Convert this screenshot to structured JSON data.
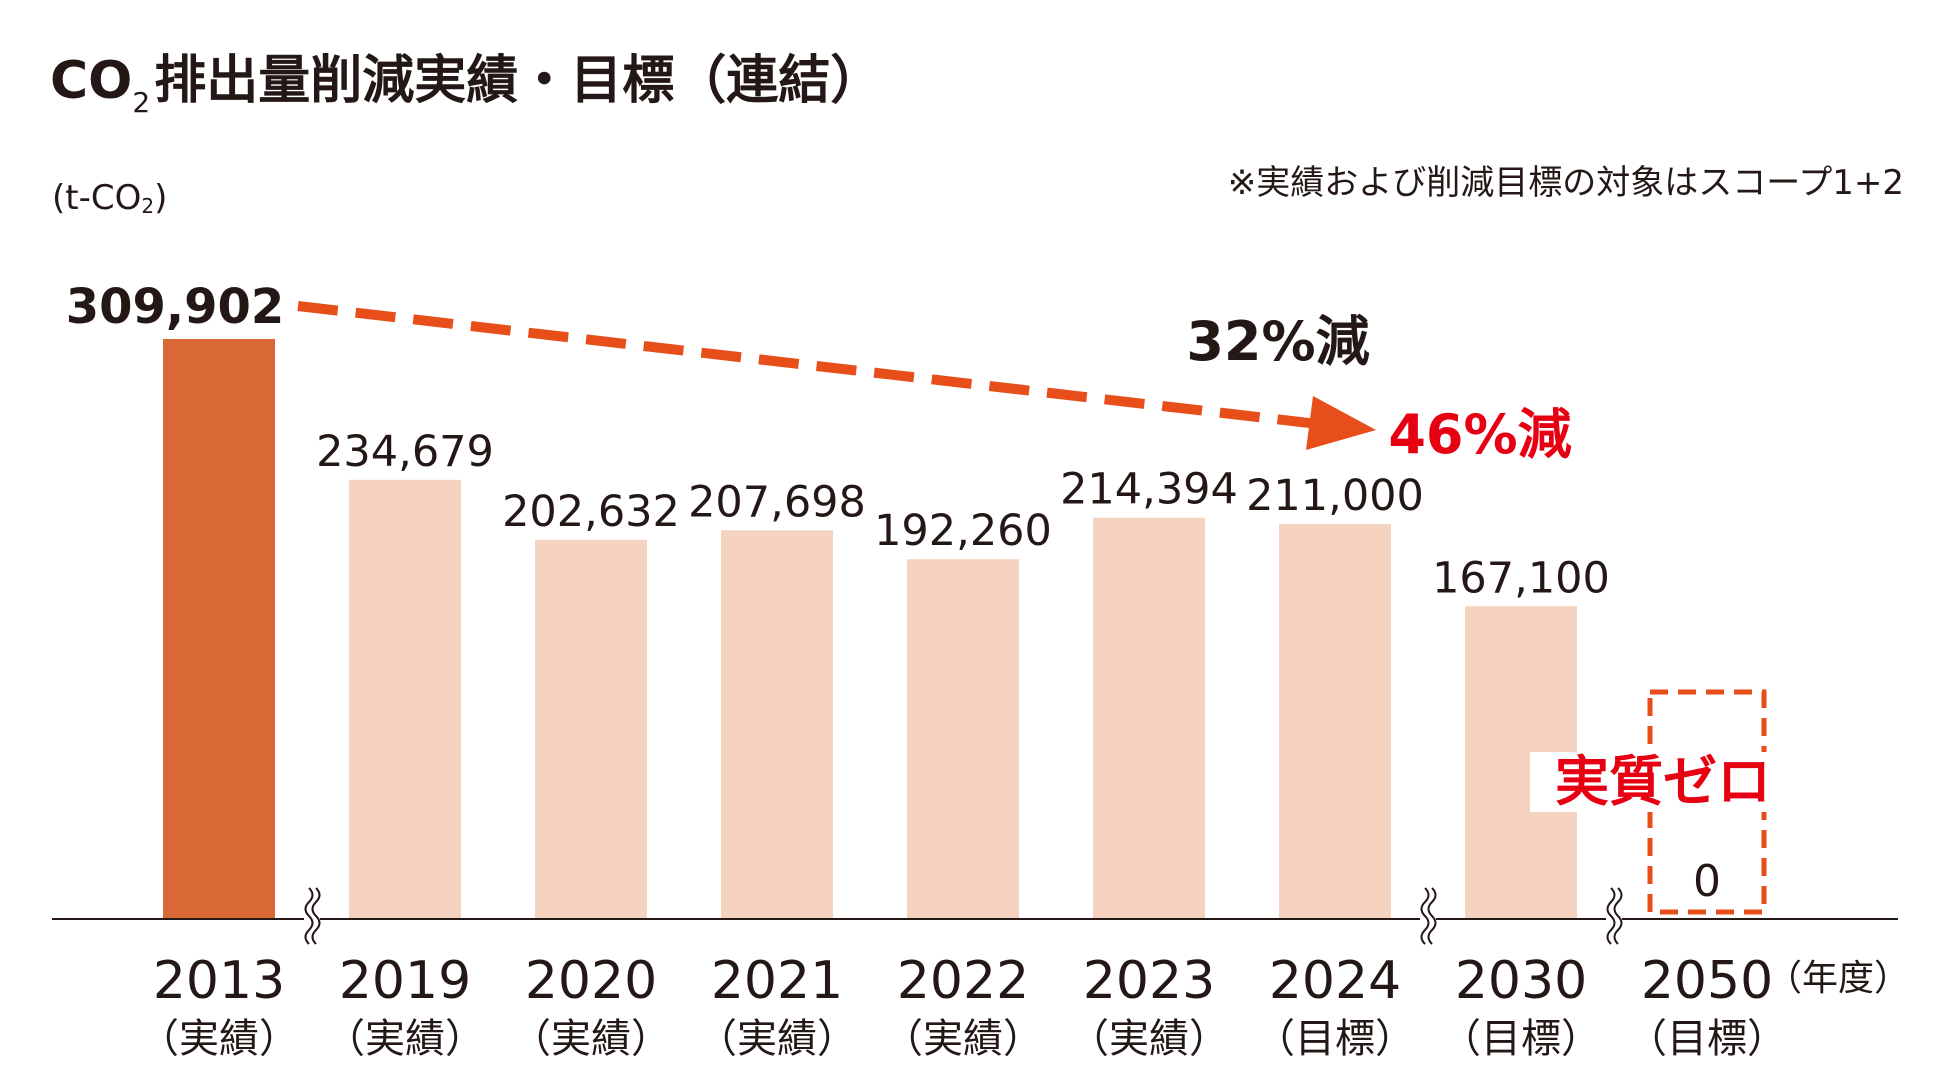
{
  "title_prefix": "CO",
  "title_sub": "2",
  "title_rest": "排出量削減実績・目標（連結）",
  "unit_prefix": "(t-CO",
  "unit_sub": "2",
  "unit_suffix": ")",
  "note": "※実績および削減目標の対象はスコープ1+2",
  "colors": {
    "actual_base": "#D86835",
    "bars": "#F6D3C0",
    "accent": "#E84E1A",
    "red": "#E60012",
    "text": "#231815"
  },
  "chart_data": {
    "type": "bar",
    "categories": [
      "2013",
      "2019",
      "2020",
      "2021",
      "2022",
      "2023",
      "2024",
      "2030",
      "2050"
    ],
    "sublabels": [
      "（実績）",
      "（実績）",
      "（実績）",
      "（実績）",
      "（実績）",
      "（実績）",
      "（目標）",
      "（目標）",
      "（目標）"
    ],
    "values": [
      309902,
      234679,
      202632,
      207698,
      192260,
      214394,
      211000,
      167100,
      0
    ],
    "value_labels": [
      "309,902",
      "234,679",
      "202,632",
      "207,698",
      "192,260",
      "214,394",
      "211,000",
      "167,100",
      "0"
    ],
    "x_unit": "（年度）",
    "axis_breaks_after": [
      "2013",
      "2024",
      "2030"
    ],
    "annotations": {
      "reduction_2024": "32%減",
      "reduction_2030": "46%減",
      "net_zero": "実質ゼロ"
    },
    "ylim": [
      0,
      320000
    ]
  }
}
